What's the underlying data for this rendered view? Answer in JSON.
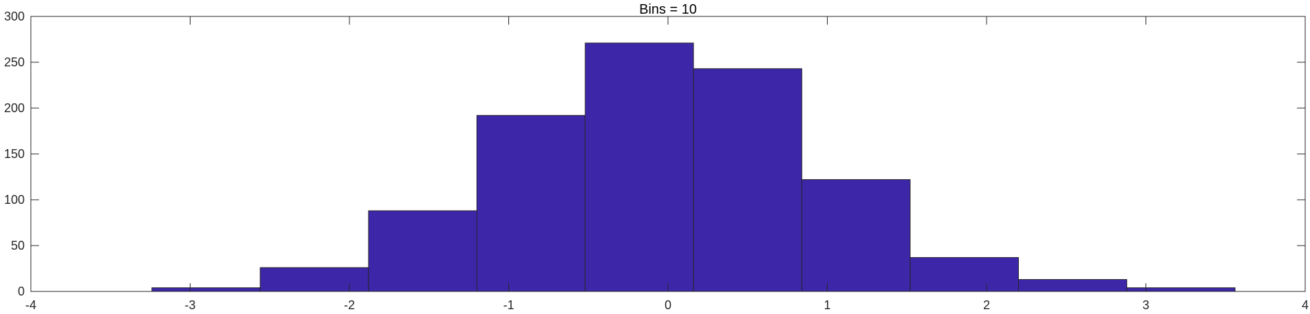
{
  "chart_data": {
    "type": "bar",
    "title": "Bins = 10",
    "xlabel": "",
    "ylabel": "",
    "xlim": [
      -4,
      4
    ],
    "ylim": [
      0,
      300
    ],
    "x_ticks": [
      -4,
      -3,
      -2,
      -1,
      0,
      1,
      2,
      3,
      4
    ],
    "y_ticks": [
      0,
      50,
      100,
      150,
      200,
      250,
      300
    ],
    "x_tick_labels": [
      "-4",
      "-3",
      "-2",
      "-1",
      "0",
      "1",
      "2",
      "3",
      "4"
    ],
    "y_tick_labels": [
      "0",
      "50",
      "100",
      "150",
      "200",
      "250",
      "300"
    ],
    "bin_edges": [
      -3.24,
      -2.56,
      -1.88,
      -1.2,
      -0.52,
      0.16,
      0.84,
      1.52,
      2.2,
      2.88,
      3.56
    ],
    "values": [
      4,
      26,
      88,
      192,
      271,
      243,
      122,
      37,
      13,
      4
    ],
    "bar_color": "#3d26a8",
    "edge_color": "#262626",
    "grid": false,
    "box": true
  }
}
